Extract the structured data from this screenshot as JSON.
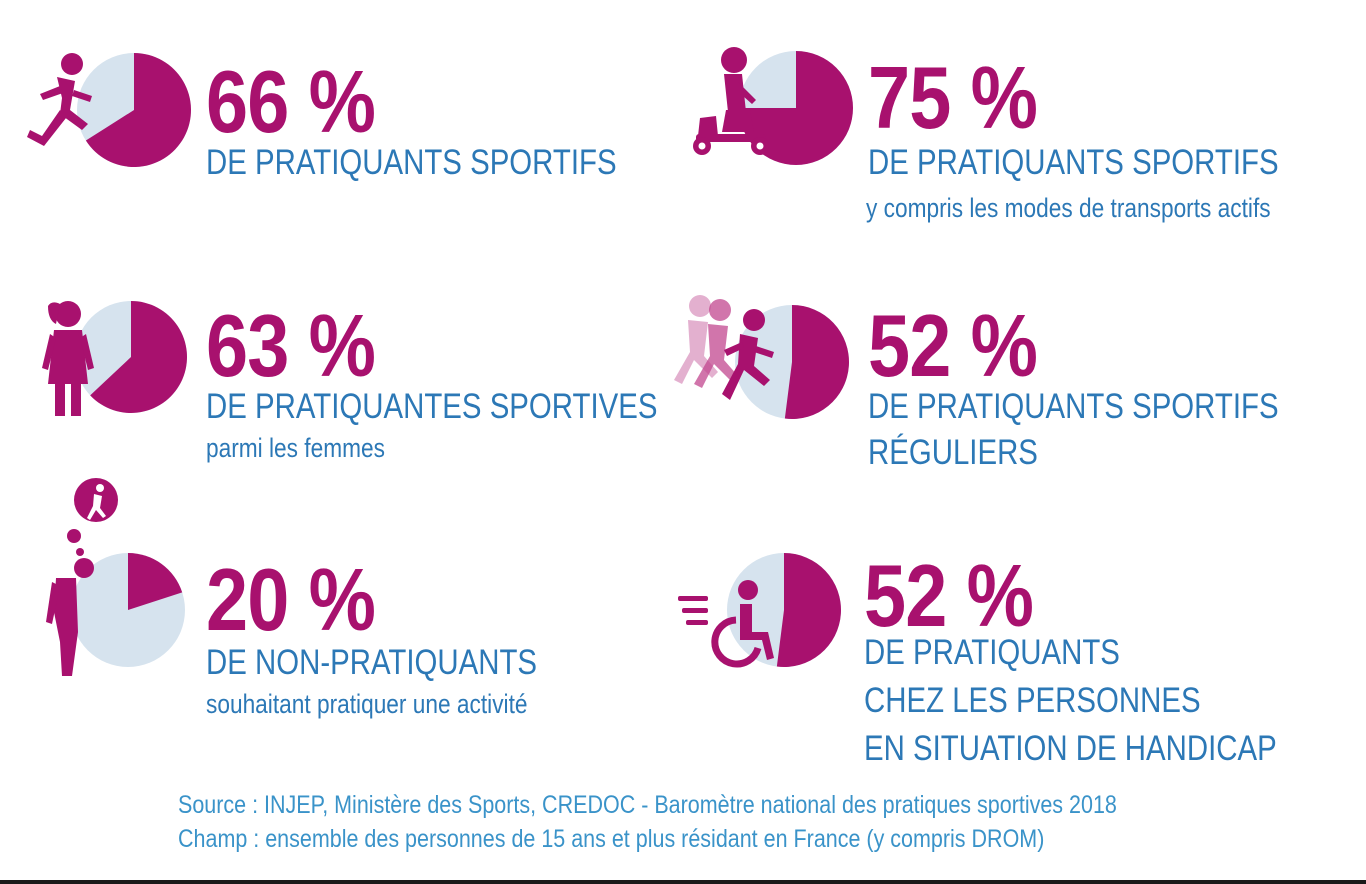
{
  "chart_data": [
    {
      "type": "pie",
      "value": 66,
      "percent_text": "66 %",
      "label_lines": [
        "DE PRATIQUANTS SPORTIFS"
      ],
      "subtitle": "",
      "icon": "runner-icon"
    },
    {
      "type": "pie",
      "value": 75,
      "percent_text": "75 %",
      "label_lines": [
        "DE PRATIQUANTS SPORTIFS"
      ],
      "subtitle": "y compris les modes de transports actifs",
      "icon": "scooter-rider-icon"
    },
    {
      "type": "pie",
      "value": 63,
      "percent_text": "63 %",
      "label_lines": [
        "DE PRATIQUANTES SPORTIVES"
      ],
      "subtitle": "parmi les femmes",
      "icon": "woman-icon"
    },
    {
      "type": "pie",
      "value": 52,
      "percent_text": "52 %",
      "label_lines": [
        "DE PRATIQUANTS SPORTIFS",
        "RÉGULIERS"
      ],
      "subtitle": "",
      "icon": "runners-group-icon"
    },
    {
      "type": "pie",
      "value": 20,
      "percent_text": "20 %",
      "label_lines": [
        "DE NON-PRATIQUANTS"
      ],
      "subtitle": "souhaitant pratiquer une activité",
      "icon": "thinking-person-icon"
    },
    {
      "type": "pie",
      "value": 52,
      "percent_text": "52 %",
      "label_lines": [
        "DE PRATIQUANTS",
        "CHEZ LES PERSONNES",
        "EN SITUATION DE HANDICAP"
      ],
      "subtitle": "",
      "icon": "wheelchair-icon"
    }
  ],
  "footer": {
    "source": "Source  : INJEP, Ministère des Sports, CREDOC - Baromètre national des pratiques sportives 2018",
    "scope": "Champ : ensemble des personnes de 15 ans et plus résidant en France (y compris DROM)"
  },
  "colors": {
    "accent": "#a8116e",
    "pie_background": "#d6e3ee",
    "text_blue": "#2c78b6",
    "footer_blue": "#3a93c9"
  }
}
